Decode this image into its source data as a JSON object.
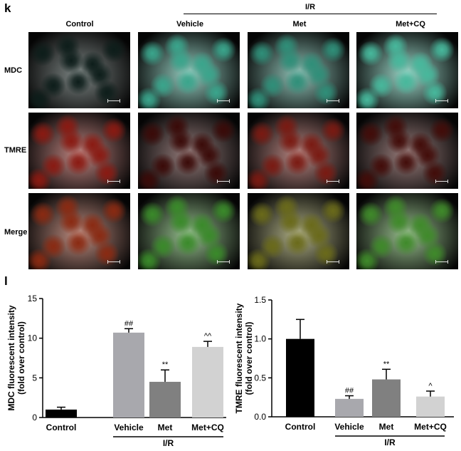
{
  "panel_k": {
    "letter": "k",
    "group_label": "I/R",
    "columns": [
      "Control",
      "Vehicle",
      "Met",
      "Met+CQ"
    ],
    "rows": [
      "MDC",
      "TMRE",
      "Merge"
    ],
    "colors": {
      "MDC": [
        "#0d1d1a",
        "#3aa58c",
        "#2f8f79",
        "#47b89c"
      ],
      "TMRE": [
        "#8a1a12",
        "#3a0a08",
        "#7a1a12",
        "#420c09"
      ],
      "Merge": [
        "#8a2a12",
        "#3a8a2a",
        "#6a6a1a",
        "#3f8a2a"
      ]
    }
  },
  "panel_l": {
    "letter": "l",
    "group_label": "I/R"
  },
  "chart_data": [
    {
      "type": "bar",
      "categories": [
        "Control",
        "Vehicle",
        "Met",
        "Met+CQ"
      ],
      "values": [
        1.0,
        10.7,
        4.5,
        8.9
      ],
      "errors": [
        0.3,
        0.5,
        1.5,
        0.7
      ],
      "annotations": [
        "",
        "##",
        "**",
        "^^"
      ],
      "colors": [
        "#000000",
        "#a8a8ad",
        "#808080",
        "#d2d2d2"
      ],
      "ylabel_lines": [
        "MDC fluorescent intensity",
        "(fold over control)"
      ],
      "ylim": [
        0,
        15
      ],
      "yticks": [
        0,
        5,
        10,
        15
      ],
      "ytick_labels": [
        "0",
        "5",
        "10",
        "15"
      ],
      "group_label": "I/R"
    },
    {
      "type": "bar",
      "categories": [
        "Control",
        "Vehicle",
        "Met",
        "Met+CQ"
      ],
      "values": [
        1.0,
        0.23,
        0.48,
        0.26
      ],
      "errors": [
        0.25,
        0.04,
        0.13,
        0.07
      ],
      "annotations": [
        "",
        "##",
        "**",
        "^"
      ],
      "colors": [
        "#000000",
        "#a8a8ad",
        "#808080",
        "#d2d2d2"
      ],
      "ylabel_lines": [
        "TMRE fluorescent intensity",
        "(fold over control)"
      ],
      "ylim": [
        0,
        1.5
      ],
      "yticks": [
        0,
        0.5,
        1.0,
        1.5
      ],
      "ytick_labels": [
        "0.0",
        "0.5",
        "1.0",
        "1.5"
      ],
      "group_label": "I/R"
    }
  ]
}
